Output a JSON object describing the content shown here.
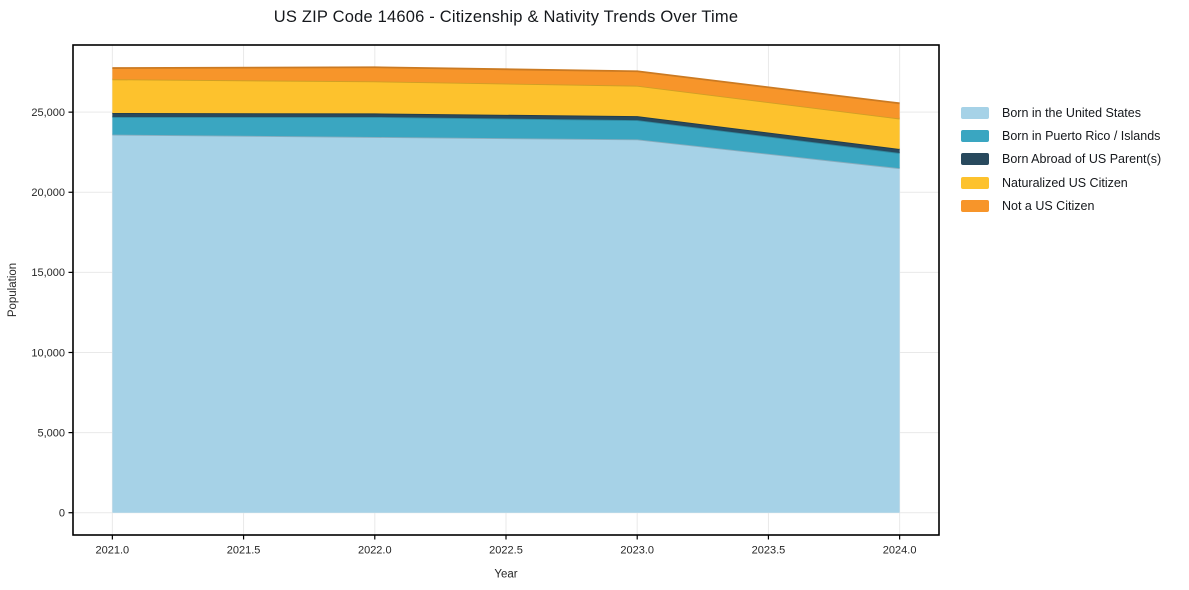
{
  "chart_data": {
    "type": "area",
    "stacked": true,
    "title": "US ZIP Code 14606 - Citizenship & Nativity Trends Over Time",
    "xlabel": "Year",
    "ylabel": "Population",
    "x": [
      2021,
      2022,
      2023,
      2024
    ],
    "series": [
      {
        "name": "Born in the United States",
        "color": "#a6d2e7",
        "values": [
          23600,
          23450,
          23300,
          21500
        ]
      },
      {
        "name": "Born in Puerto Rico / Islands",
        "color": "#3aa6c1",
        "values": [
          1100,
          1250,
          1200,
          950
        ]
      },
      {
        "name": "Born Abroad of US Parent(s)",
        "color": "#28495d",
        "values": [
          250,
          220,
          250,
          250
        ]
      },
      {
        "name": "Naturalized US Citizen",
        "color": "#fdc22d",
        "values": [
          2100,
          2000,
          1900,
          1900
        ]
      },
      {
        "name": "Not a US Citizen",
        "color": "#f7952a",
        "values": [
          700,
          880,
          900,
          950
        ]
      }
    ],
    "xlim": [
      2020.85,
      2024.15
    ],
    "ylim": [
      -1390,
      29190
    ],
    "x_ticks": {
      "values": [
        2021.0,
        2021.5,
        2022.0,
        2022.5,
        2023.0,
        2023.5,
        2024.0
      ],
      "labels": [
        "2021.0",
        "2021.5",
        "2022.0",
        "2022.5",
        "2023.0",
        "2023.5",
        "2024.0"
      ]
    },
    "y_ticks": {
      "values": [
        0,
        5000,
        10000,
        15000,
        20000,
        25000
      ],
      "labels": [
        "0",
        "5,000",
        "10,000",
        "15,000",
        "20,000",
        "25,000"
      ]
    },
    "grid": true,
    "legend_position": "right"
  },
  "colors": {
    "grid": "#e9e9e9",
    "spine": "#000000",
    "tick_text": "#262626",
    "title_text": "#15181c",
    "background": "#ffffff"
  }
}
